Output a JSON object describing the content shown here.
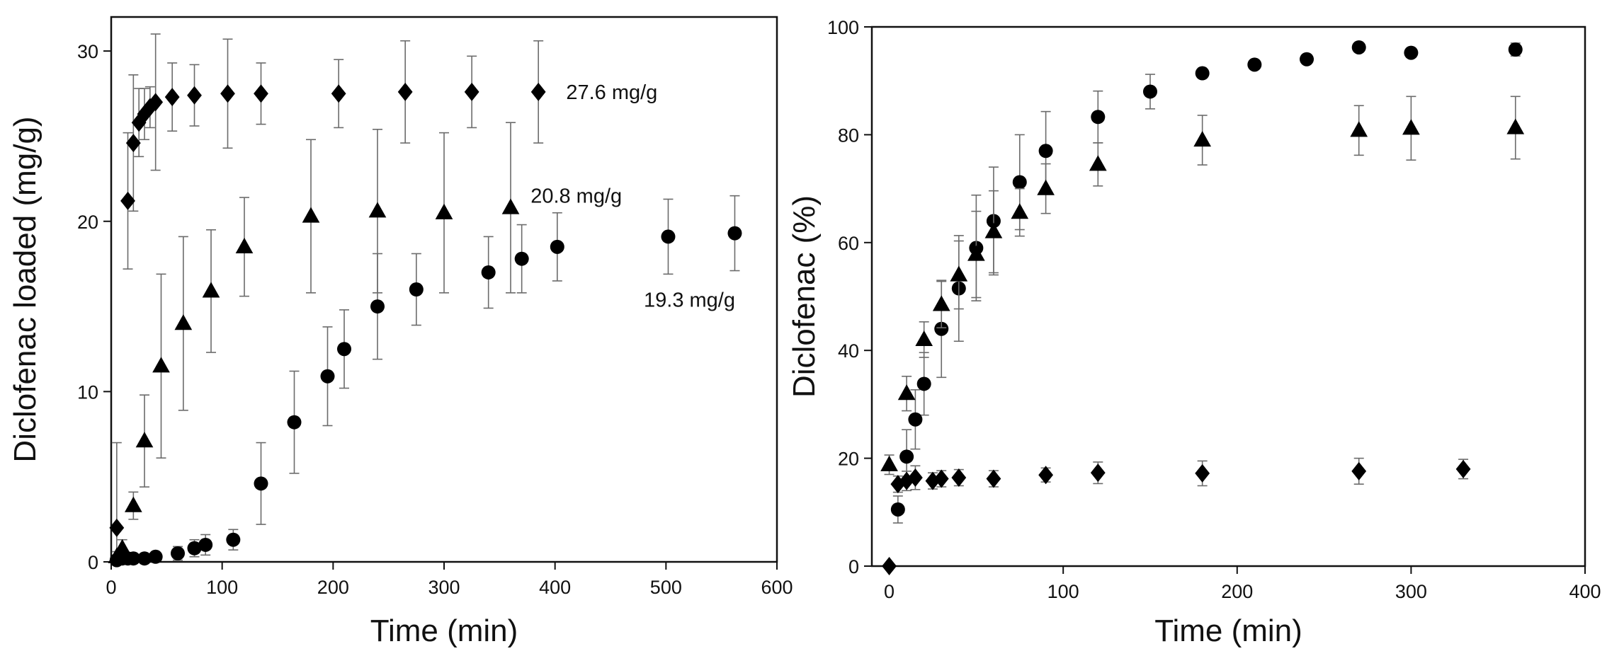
{
  "chart_data": [
    {
      "type": "scatter",
      "title": "",
      "xlabel": "Time (min)",
      "ylabel": "Diclofenac loaded (mg/g)",
      "xlim": [
        0,
        600
      ],
      "ylim": [
        0,
        32
      ],
      "xticks": [
        0,
        100,
        200,
        300,
        400,
        500,
        600
      ],
      "xtick_labels": [
        "0",
        "100",
        "200",
        "300",
        "400",
        "500",
        "600"
      ],
      "yticks": [
        0,
        10,
        20,
        30
      ],
      "ytick_labels": [
        "0",
        "10",
        "20",
        "30"
      ],
      "grid": false,
      "annotations": [
        {
          "text": "27.6 mg/g",
          "x": 410,
          "y": 27.6
        },
        {
          "text": "20.8 mg/g",
          "x": 378,
          "y": 21.5
        },
        {
          "text": "19.3 mg/g",
          "x": 480,
          "y": 15.4
        }
      ],
      "series": [
        {
          "name": "diamond",
          "marker": "diamond",
          "x": [
            5,
            15,
            20,
            25,
            30,
            35,
            40,
            55,
            75,
            105,
            135,
            205,
            265,
            325,
            385
          ],
          "y": [
            2.0,
            21.2,
            24.6,
            25.8,
            26.3,
            26.7,
            27.0,
            27.3,
            27.4,
            27.5,
            27.5,
            27.5,
            27.6,
            27.6,
            27.6
          ],
          "err": [
            5.0,
            4.0,
            4.0,
            2.0,
            1.5,
            1.2,
            4.0,
            2.0,
            1.8,
            3.2,
            1.8,
            2.0,
            3.0,
            2.1,
            3.0
          ]
        },
        {
          "name": "triangle",
          "marker": "triangle",
          "x": [
            5,
            10,
            20,
            30,
            45,
            65,
            90,
            120,
            180,
            240,
            300,
            360
          ],
          "y": [
            0.3,
            0.8,
            3.3,
            7.1,
            11.5,
            14.0,
            15.9,
            18.5,
            20.3,
            20.6,
            20.5,
            20.8
          ],
          "err": [
            0.3,
            0.5,
            0.8,
            2.7,
            5.4,
            5.1,
            3.6,
            2.9,
            4.5,
            4.8,
            4.7,
            5.0
          ]
        },
        {
          "name": "circle",
          "marker": "circle",
          "x": [
            5,
            10,
            15,
            20,
            30,
            40,
            60,
            75,
            85,
            110,
            135,
            165,
            195,
            210,
            240,
            275,
            340,
            370,
            402,
            502,
            562
          ],
          "y": [
            0.1,
            0.2,
            0.2,
            0.2,
            0.2,
            0.3,
            0.5,
            0.8,
            1.0,
            1.3,
            4.6,
            8.2,
            10.9,
            12.5,
            15.0,
            16.0,
            17.0,
            17.8,
            18.5,
            19.1,
            19.3
          ],
          "err": [
            0.2,
            0.2,
            0.2,
            0.2,
            0.2,
            0.2,
            0.4,
            0.5,
            0.6,
            0.6,
            2.4,
            3.0,
            2.9,
            2.3,
            3.1,
            2.1,
            2.1,
            2.0,
            2.0,
            2.2,
            2.2
          ]
        }
      ]
    },
    {
      "type": "scatter",
      "title": "",
      "xlabel": "Time (min)",
      "ylabel": "Diclofenac (%)",
      "xlim": [
        -10,
        400
      ],
      "ylim": [
        0,
        100
      ],
      "xticks": [
        0,
        100,
        200,
        300,
        400
      ],
      "xtick_labels": [
        "0",
        "100",
        "200",
        "300",
        "400"
      ],
      "yticks": [
        0,
        20,
        40,
        60,
        80,
        100
      ],
      "ytick_labels": [
        "0",
        "20",
        "40",
        "60",
        "80",
        "100"
      ],
      "grid": false,
      "annotations": [],
      "series": [
        {
          "name": "circle",
          "marker": "circle",
          "x": [
            5,
            10,
            15,
            20,
            30,
            40,
            50,
            60,
            75,
            90,
            120,
            150,
            180,
            210,
            240,
            270,
            300,
            360
          ],
          "y": [
            10.5,
            20.3,
            27.2,
            33.8,
            44.0,
            51.5,
            59.0,
            64.0,
            71.2,
            77.0,
            83.3,
            88.0,
            91.4,
            93.0,
            94.0,
            96.2,
            95.2,
            95.8
          ],
          "err": [
            2.5,
            5.0,
            5.5,
            5.8,
            9.0,
            9.8,
            9.8,
            10.0,
            8.8,
            7.3,
            4.8,
            3.2,
            0,
            0,
            0,
            0,
            0,
            1.2
          ]
        },
        {
          "name": "triangle",
          "marker": "triangle",
          "x": [
            0,
            10,
            20,
            30,
            40,
            50,
            60,
            75,
            90,
            120,
            180,
            270,
            300,
            360
          ],
          "y": [
            18.8,
            32.0,
            42.0,
            48.5,
            54.0,
            57.8,
            62.0,
            65.6,
            70.0,
            74.5,
            79.0,
            80.8,
            81.2,
            81.3
          ],
          "err": [
            1.8,
            3.2,
            3.3,
            4.3,
            6.3,
            8.0,
            7.6,
            4.4,
            4.6,
            4.0,
            4.6,
            4.6,
            5.9,
            5.8
          ]
        },
        {
          "name": "diamond",
          "marker": "diamond",
          "x": [
            0,
            5,
            10,
            15,
            25,
            30,
            40,
            60,
            90,
            120,
            180,
            270,
            330
          ],
          "y": [
            0.0,
            15.2,
            15.8,
            16.4,
            15.8,
            16.2,
            16.4,
            16.2,
            16.9,
            17.3,
            17.2,
            17.6,
            18.0
          ],
          "err": [
            0,
            1.5,
            1.8,
            2.2,
            1.5,
            1.5,
            1.5,
            1.5,
            1.3,
            2.0,
            2.3,
            2.4,
            1.8
          ]
        }
      ]
    }
  ]
}
